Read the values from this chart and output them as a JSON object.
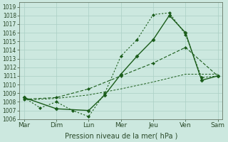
{
  "title": "",
  "xlabel": "Pression niveau de la mer( hPa )",
  "ylabel": "",
  "background_color": "#cce8df",
  "grid_color": "#aacfc4",
  "line_color": "#1a5c1a",
  "ylim": [
    1006,
    1019.5
  ],
  "xlim": [
    -0.15,
    6.15
  ],
  "x_labels": [
    "Mar",
    "Dim",
    "Lun",
    "Mer",
    "Jeu",
    "Ven",
    "Sam"
  ],
  "x_positions": [
    0,
    1,
    2,
    3,
    4,
    5,
    6
  ],
  "series": [
    {
      "x": [
        0,
        1,
        2,
        2.5,
        3,
        3.5,
        4,
        4.5,
        5,
        5.5,
        6
      ],
      "y": [
        1008.5,
        1007.2,
        1007.0,
        1008.8,
        1011.2,
        1013.3,
        1015.2,
        1018.0,
        1016.0,
        1010.5,
        1011.0
      ],
      "linestyle": "solid",
      "marker": "D",
      "marker_size": 2.5,
      "linewidth": 1.0,
      "dashes": null
    },
    {
      "x": [
        0,
        0.5,
        1,
        1.5,
        2,
        2.5,
        3,
        3.5,
        4,
        4.5,
        5,
        5.5,
        6
      ],
      "y": [
        1008.5,
        1007.3,
        1008.0,
        1007.0,
        1006.3,
        1009.0,
        1013.3,
        1015.2,
        1018.1,
        1018.3,
        1015.8,
        1010.8,
        1011.0
      ],
      "linestyle": "solid",
      "marker": "D",
      "marker_size": 2.0,
      "linewidth": 0.8,
      "dashes": [
        2,
        2
      ]
    },
    {
      "x": [
        0,
        1,
        2,
        3,
        4,
        5,
        6
      ],
      "y": [
        1008.3,
        1008.5,
        1009.5,
        1011.0,
        1012.5,
        1014.3,
        1011.0
      ],
      "linestyle": "solid",
      "marker": "D",
      "marker_size": 2.0,
      "linewidth": 0.8,
      "dashes": [
        4,
        2
      ]
    },
    {
      "x": [
        0,
        1,
        2,
        3,
        4,
        5,
        6
      ],
      "y": [
        1008.2,
        1008.4,
        1008.8,
        1009.5,
        1010.3,
        1011.2,
        1011.2
      ],
      "linestyle": "solid",
      "marker": null,
      "marker_size": 0,
      "linewidth": 0.7,
      "dashes": [
        3,
        2
      ]
    }
  ]
}
